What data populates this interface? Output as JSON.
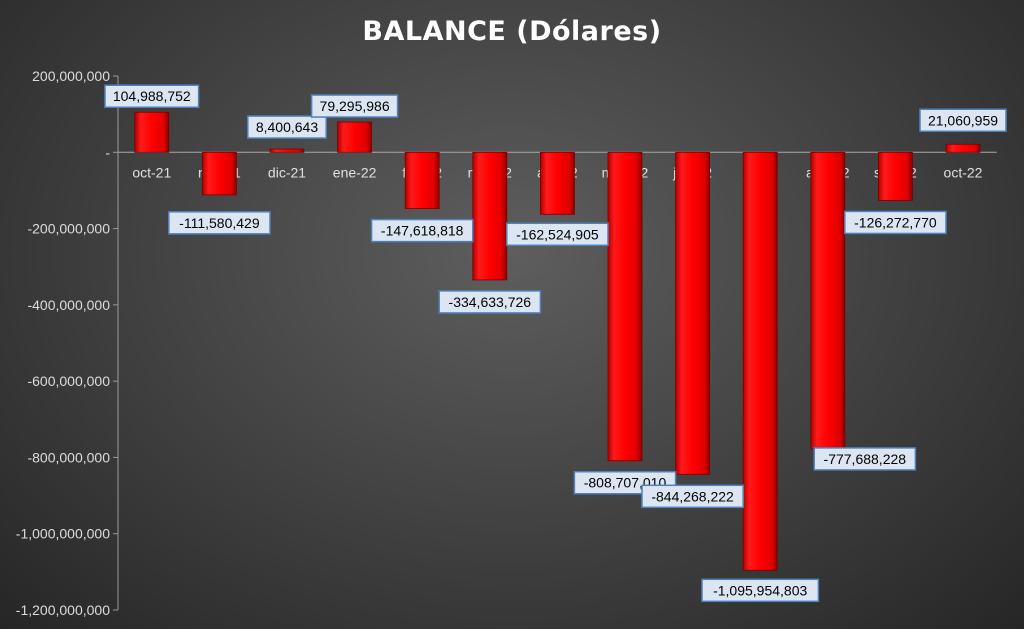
{
  "chart_data": {
    "type": "bar",
    "title": "BALANCE (Dólares)",
    "xlabel": "",
    "ylabel": "",
    "categories": [
      "oct-21",
      "nov-21",
      "dic-21",
      "ene-22",
      "feb-22",
      "mar-22",
      "abr-22",
      "may-22",
      "jun-22",
      "jul-22",
      "ago-22",
      "sep-22",
      "oct-22"
    ],
    "values": [
      104988752,
      -111580429,
      8400643,
      79295986,
      -147618818,
      -334633726,
      -162524905,
      -808707010,
      -844268222,
      -1095954803,
      -777688228,
      -126272770,
      21060959
    ],
    "data_labels": [
      "104,988,752",
      "-111,580,429",
      "8,400,643",
      "79,295,986",
      "-147,618,818",
      "-334,633,726",
      "-162,524,905",
      "-808,707,010",
      "-844,268,222",
      "-1,095,954,803",
      "-777,688,228",
      "-126,272,770",
      "21,060,959"
    ],
    "ylim": [
      -1200000000,
      200000000
    ],
    "yticks": [
      200000000,
      0,
      -200000000,
      -400000000,
      -600000000,
      -800000000,
      -1000000000,
      -1200000000
    ],
    "ytick_labels": [
      "200,000,000",
      "-",
      "-200,000,000",
      "-400,000,000",
      "-600,000,000",
      "-800,000,000",
      "-1,000,000,000",
      "-1,200,000,000"
    ],
    "grid": false,
    "legend": "none",
    "bar_color": "#ff0000",
    "label_box_fill": "#dce6f2",
    "label_box_border": "#4f81bd"
  }
}
